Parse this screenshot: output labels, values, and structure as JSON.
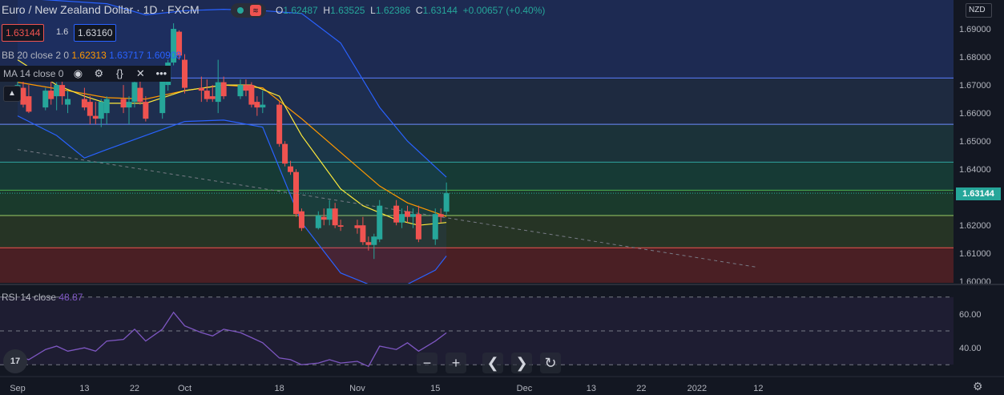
{
  "header": {
    "symbol_title": "Euro / New Zealand Dollar · 1D · FXCM",
    "ohlc": [
      {
        "k": "O",
        "v": "1.62487"
      },
      {
        "k": "H",
        "v": "1.63525"
      },
      {
        "k": "L",
        "v": "1.62386"
      },
      {
        "k": "C",
        "v": "1.63144"
      },
      {
        "k": "",
        "v": "+0.00657 (+0.40%)"
      }
    ],
    "sell_price": "1.63144",
    "spread": "1.6",
    "buy_price": "1.63160",
    "currency": "NZD"
  },
  "indicators": {
    "bb_label": "BB 20 close 2 0",
    "bb_basis": "1.62313",
    "bb_upper": "1.63717",
    "bb_lower": "1.60908",
    "ma_label": "MA 14 close 0",
    "rsi_label": "RSI 14 close",
    "rsi_value": "48.87"
  },
  "icons": [
    "eye-icon",
    "gear-icon",
    "braces-icon",
    "close-icon",
    "more-icon",
    "collapse-icon",
    "zoom-out-icon",
    "zoom-in-icon",
    "scroll-left-icon",
    "scroll-right-icon",
    "reset-icon",
    "settings-icon",
    "tradingview-logo"
  ],
  "controls": {
    "zoom_out": "−",
    "zoom_in": "+",
    "left": "❮",
    "right": "❯",
    "reset": "↻",
    "logo": "17",
    "more": "•••"
  },
  "last_price_label": "1.63144",
  "colors": {
    "background": "#131722",
    "up": "#26a69a",
    "down": "#ef5350",
    "bb_band": "#2962ff",
    "bb_basis": "#ff9800",
    "ma": "#ffeb3b",
    "rsi": "#7e57c2"
  },
  "chart_data": [
    {
      "type": "candlestick",
      "title": "Euro / New Zealand Dollar · 1D · FXCM",
      "y_ticks": [
        "1.69000",
        "1.68000",
        "1.67000",
        "1.66000",
        "1.65000",
        "1.64000",
        "1.63000",
        "1.62000",
        "1.61000",
        "1.60000"
      ],
      "ylim": [
        1.5995,
        1.7003
      ],
      "x_ticks": [
        {
          "label": "Sep",
          "date": "2021-09-01"
        },
        {
          "label": "13",
          "date": "2021-09-13"
        },
        {
          "label": "22",
          "date": "2021-09-22"
        },
        {
          "label": "Oct",
          "date": "2021-10-01"
        },
        {
          "label": "18",
          "date": "2021-10-18"
        },
        {
          "label": "Nov",
          "date": "2021-11-01"
        },
        {
          "label": "15",
          "date": "2021-11-15"
        },
        {
          "label": "Dec",
          "date": "2021-12-01"
        },
        {
          "label": "13",
          "date": "2021-12-13"
        },
        {
          "label": "22",
          "date": "2021-12-22"
        },
        {
          "label": "2022",
          "date": "2022-01-01"
        },
        {
          "label": "12",
          "date": "2022-01-12"
        }
      ],
      "candles": [
        {
          "date": "2021-09-01",
          "o": 1.6695,
          "h": 1.674,
          "l": 1.666,
          "c": 1.67
        },
        {
          "date": "2021-09-02",
          "o": 1.669,
          "h": 1.672,
          "l": 1.662,
          "c": 1.663
        },
        {
          "date": "2021-09-03",
          "o": 1.666,
          "h": 1.67,
          "l": 1.66,
          "c": 1.6605
        },
        {
          "date": "2021-09-06",
          "o": 1.662,
          "h": 1.669,
          "l": 1.661,
          "c": 1.668
        },
        {
          "date": "2021-09-07",
          "o": 1.668,
          "h": 1.672,
          "l": 1.663,
          "c": 1.665
        },
        {
          "date": "2021-09-08",
          "o": 1.666,
          "h": 1.671,
          "l": 1.661,
          "c": 1.67
        },
        {
          "date": "2021-09-09",
          "o": 1.67,
          "h": 1.672,
          "l": 1.663,
          "c": 1.666
        },
        {
          "date": "2021-09-10",
          "o": 1.663,
          "h": 1.668,
          "l": 1.66,
          "c": 1.665
        },
        {
          "date": "2021-09-13",
          "o": 1.665,
          "h": 1.669,
          "l": 1.661,
          "c": 1.662
        },
        {
          "date": "2021-09-14",
          "o": 1.664,
          "h": 1.666,
          "l": 1.656,
          "c": 1.659
        },
        {
          "date": "2021-09-15",
          "o": 1.659,
          "h": 1.664,
          "l": 1.656,
          "c": 1.658
        },
        {
          "date": "2021-09-16",
          "o": 1.658,
          "h": 1.665,
          "l": 1.655,
          "c": 1.664
        },
        {
          "date": "2021-09-17",
          "o": 1.66,
          "h": 1.666,
          "l": 1.656,
          "c": 1.665
        },
        {
          "date": "2021-09-20",
          "o": 1.665,
          "h": 1.67,
          "l": 1.66,
          "c": 1.662
        },
        {
          "date": "2021-09-21",
          "o": 1.662,
          "h": 1.666,
          "l": 1.656,
          "c": 1.664
        },
        {
          "date": "2021-09-22",
          "o": 1.664,
          "h": 1.672,
          "l": 1.662,
          "c": 1.671
        },
        {
          "date": "2021-09-23",
          "o": 1.669,
          "h": 1.672,
          "l": 1.663,
          "c": 1.664
        },
        {
          "date": "2021-09-24",
          "o": 1.664,
          "h": 1.666,
          "l": 1.657,
          "c": 1.658
        },
        {
          "date": "2021-09-27",
          "o": 1.66,
          "h": 1.674,
          "l": 1.658,
          "c": 1.672
        },
        {
          "date": "2021-09-28",
          "o": 1.67,
          "h": 1.679,
          "l": 1.668,
          "c": 1.678
        },
        {
          "date": "2021-09-29",
          "o": 1.678,
          "h": 1.692,
          "l": 1.677,
          "c": 1.69
        },
        {
          "date": "2021-09-30",
          "o": 1.689,
          "h": 1.6895,
          "l": 1.679,
          "c": 1.6805
        },
        {
          "date": "2021-10-01",
          "o": 1.679,
          "h": 1.681,
          "l": 1.667,
          "c": 1.669
        },
        {
          "date": "2021-10-04",
          "o": 1.669,
          "h": 1.673,
          "l": 1.664,
          "c": 1.668
        },
        {
          "date": "2021-10-05",
          "o": 1.668,
          "h": 1.672,
          "l": 1.664,
          "c": 1.665
        },
        {
          "date": "2021-10-06",
          "o": 1.666,
          "h": 1.67,
          "l": 1.664,
          "c": 1.665
        },
        {
          "date": "2021-10-07",
          "o": 1.664,
          "h": 1.679,
          "l": 1.66,
          "c": 1.671
        },
        {
          "date": "2021-10-08",
          "o": 1.671,
          "h": 1.673,
          "l": 1.665,
          "c": 1.666
        },
        {
          "date": "2021-10-11",
          "o": 1.666,
          "h": 1.672,
          "l": 1.665,
          "c": 1.67
        },
        {
          "date": "2021-10-12",
          "o": 1.67,
          "h": 1.672,
          "l": 1.666,
          "c": 1.668
        },
        {
          "date": "2021-10-13",
          "o": 1.67,
          "h": 1.671,
          "l": 1.662,
          "c": 1.663
        },
        {
          "date": "2021-10-14",
          "o": 1.664,
          "h": 1.666,
          "l": 1.659,
          "c": 1.662
        },
        {
          "date": "2021-10-15",
          "o": 1.662,
          "h": 1.668,
          "l": 1.66,
          "c": 1.663
        },
        {
          "date": "2021-10-18",
          "o": 1.663,
          "h": 1.664,
          "l": 1.648,
          "c": 1.649
        },
        {
          "date": "2021-10-19",
          "o": 1.649,
          "h": 1.65,
          "l": 1.641,
          "c": 1.642
        },
        {
          "date": "2021-10-20",
          "o": 1.641,
          "h": 1.643,
          "l": 1.638,
          "c": 1.639
        },
        {
          "date": "2021-10-21",
          "o": 1.639,
          "h": 1.64,
          "l": 1.623,
          "c": 1.624
        },
        {
          "date": "2021-10-22",
          "o": 1.625,
          "h": 1.626,
          "l": 1.618,
          "c": 1.619
        },
        {
          "date": "2021-10-25",
          "o": 1.619,
          "h": 1.625,
          "l": 1.6185,
          "c": 1.6235
        },
        {
          "date": "2021-10-26",
          "o": 1.623,
          "h": 1.626,
          "l": 1.62,
          "c": 1.622
        },
        {
          "date": "2021-10-27",
          "o": 1.622,
          "h": 1.629,
          "l": 1.62,
          "c": 1.626
        },
        {
          "date": "2021-10-28",
          "o": 1.626,
          "h": 1.628,
          "l": 1.619,
          "c": 1.62
        },
        {
          "date": "2021-10-29",
          "o": 1.62,
          "h": 1.622,
          "l": 1.618,
          "c": 1.6195
        },
        {
          "date": "2021-11-01",
          "o": 1.62,
          "h": 1.622,
          "l": 1.617,
          "c": 1.619
        },
        {
          "date": "2021-11-02",
          "o": 1.62,
          "h": 1.623,
          "l": 1.613,
          "c": 1.614
        },
        {
          "date": "2021-11-03",
          "o": 1.614,
          "h": 1.616,
          "l": 1.611,
          "c": 1.613
        },
        {
          "date": "2021-11-04",
          "o": 1.613,
          "h": 1.617,
          "l": 1.608,
          "c": 1.616
        },
        {
          "date": "2021-11-05",
          "o": 1.615,
          "h": 1.629,
          "l": 1.614,
          "c": 1.627
        },
        {
          "date": "2021-11-08",
          "o": 1.627,
          "h": 1.629,
          "l": 1.62,
          "c": 1.621
        },
        {
          "date": "2021-11-09",
          "o": 1.621,
          "h": 1.626,
          "l": 1.619,
          "c": 1.624
        },
        {
          "date": "2021-11-10",
          "o": 1.625,
          "h": 1.627,
          "l": 1.621,
          "c": 1.623
        },
        {
          "date": "2021-11-11",
          "o": 1.623,
          "h": 1.626,
          "l": 1.619,
          "c": 1.624
        },
        {
          "date": "2021-11-12",
          "o": 1.624,
          "h": 1.627,
          "l": 1.614,
          "c": 1.615
        },
        {
          "date": "2021-11-15",
          "o": 1.615,
          "h": 1.626,
          "l": 1.613,
          "c": 1.624
        },
        {
          "date": "2021-11-16",
          "o": 1.624,
          "h": 1.626,
          "l": 1.621,
          "c": 1.623
        },
        {
          "date": "2021-11-17",
          "o": 1.62487,
          "h": 1.63525,
          "l": 1.62386,
          "c": 1.63144
        }
      ],
      "bb_upper": [
        {
          "date": "2021-09-01",
          "v": 1.701
        },
        {
          "date": "2021-09-17",
          "v": 1.699
        },
        {
          "date": "2021-09-24",
          "v": 1.695
        },
        {
          "date": "2021-10-01",
          "v": 1.6965
        },
        {
          "date": "2021-10-08",
          "v": 1.697
        },
        {
          "date": "2021-10-15",
          "v": 1.6965
        },
        {
          "date": "2021-10-22",
          "v": 1.6955
        },
        {
          "date": "2021-10-29",
          "v": 1.685
        },
        {
          "date": "2021-11-05",
          "v": 1.662
        },
        {
          "date": "2021-11-10",
          "v": 1.65
        },
        {
          "date": "2021-11-17",
          "v": 1.63717
        }
      ],
      "bb_basis": [
        {
          "date": "2021-09-01",
          "v": 1.671
        },
        {
          "date": "2021-09-10",
          "v": 1.668
        },
        {
          "date": "2021-09-17",
          "v": 1.6655
        },
        {
          "date": "2021-09-24",
          "v": 1.665
        },
        {
          "date": "2021-10-01",
          "v": 1.668
        },
        {
          "date": "2021-10-08",
          "v": 1.67
        },
        {
          "date": "2021-10-15",
          "v": 1.669
        },
        {
          "date": "2021-10-22",
          "v": 1.658
        },
        {
          "date": "2021-10-29",
          "v": 1.646
        },
        {
          "date": "2021-11-05",
          "v": 1.634
        },
        {
          "date": "2021-11-10",
          "v": 1.628
        },
        {
          "date": "2021-11-17",
          "v": 1.62313
        }
      ],
      "bb_lower": [
        {
          "date": "2021-09-01",
          "v": 1.659
        },
        {
          "date": "2021-09-08",
          "v": 1.652
        },
        {
          "date": "2021-09-13",
          "v": 1.644
        },
        {
          "date": "2021-09-17",
          "v": 1.647
        },
        {
          "date": "2021-09-24",
          "v": 1.652
        },
        {
          "date": "2021-10-01",
          "v": 1.657
        },
        {
          "date": "2021-10-08",
          "v": 1.6575
        },
        {
          "date": "2021-10-15",
          "v": 1.655
        },
        {
          "date": "2021-10-22",
          "v": 1.621
        },
        {
          "date": "2021-10-29",
          "v": 1.603
        },
        {
          "date": "2021-11-03",
          "v": 1.599
        },
        {
          "date": "2021-11-10",
          "v": 1.599
        },
        {
          "date": "2021-11-15",
          "v": 1.604
        },
        {
          "date": "2021-11-17",
          "v": 1.60908
        }
      ],
      "ma": [
        {
          "date": "2021-09-01",
          "v": 1.679
        },
        {
          "date": "2021-09-08",
          "v": 1.67
        },
        {
          "date": "2021-09-13",
          "v": 1.666
        },
        {
          "date": "2021-09-17",
          "v": 1.6635
        },
        {
          "date": "2021-09-24",
          "v": 1.6635
        },
        {
          "date": "2021-10-01",
          "v": 1.668
        },
        {
          "date": "2021-10-08",
          "v": 1.67
        },
        {
          "date": "2021-10-13",
          "v": 1.67
        },
        {
          "date": "2021-10-18",
          "v": 1.666
        },
        {
          "date": "2021-10-22",
          "v": 1.652
        },
        {
          "date": "2021-10-29",
          "v": 1.633
        },
        {
          "date": "2021-11-02",
          "v": 1.627
        },
        {
          "date": "2021-11-08",
          "v": 1.622
        },
        {
          "date": "2021-11-12",
          "v": 1.62
        },
        {
          "date": "2021-11-17",
          "v": 1.621
        }
      ],
      "horizontal_levels": [
        1.6725,
        1.656,
        1.6425,
        1.6325,
        1.6235,
        1.612
      ],
      "trend_line": [
        {
          "date": "2021-09-01",
          "v": 1.647
        },
        {
          "date": "2022-01-12",
          "v": 1.605
        }
      ],
      "last_price": 1.63144
    },
    {
      "type": "line",
      "title": "RSI 14 close",
      "y_ticks": [
        "60.00",
        "40.00"
      ],
      "ylim": [
        23,
        77
      ],
      "levels": [
        70,
        50,
        30
      ],
      "points": [
        {
          "date": "2021-09-01",
          "v": 35
        },
        {
          "date": "2021-09-03",
          "v": 33
        },
        {
          "date": "2021-09-06",
          "v": 39
        },
        {
          "date": "2021-09-08",
          "v": 41
        },
        {
          "date": "2021-09-10",
          "v": 38
        },
        {
          "date": "2021-09-13",
          "v": 40
        },
        {
          "date": "2021-09-15",
          "v": 38
        },
        {
          "date": "2021-09-17",
          "v": 44
        },
        {
          "date": "2021-09-20",
          "v": 45
        },
        {
          "date": "2021-09-22",
          "v": 51
        },
        {
          "date": "2021-09-24",
          "v": 44
        },
        {
          "date": "2021-09-27",
          "v": 51
        },
        {
          "date": "2021-09-29",
          "v": 61
        },
        {
          "date": "2021-10-01",
          "v": 53
        },
        {
          "date": "2021-10-04",
          "v": 49
        },
        {
          "date": "2021-10-06",
          "v": 47
        },
        {
          "date": "2021-10-08",
          "v": 51
        },
        {
          "date": "2021-10-11",
          "v": 49
        },
        {
          "date": "2021-10-13",
          "v": 46
        },
        {
          "date": "2021-10-15",
          "v": 43
        },
        {
          "date": "2021-10-18",
          "v": 34
        },
        {
          "date": "2021-10-20",
          "v": 33
        },
        {
          "date": "2021-10-22",
          "v": 30
        },
        {
          "date": "2021-10-25",
          "v": 31
        },
        {
          "date": "2021-10-27",
          "v": 33
        },
        {
          "date": "2021-10-29",
          "v": 31
        },
        {
          "date": "2021-11-01",
          "v": 32
        },
        {
          "date": "2021-11-03",
          "v": 29
        },
        {
          "date": "2021-11-05",
          "v": 41
        },
        {
          "date": "2021-11-08",
          "v": 39
        },
        {
          "date": "2021-11-10",
          "v": 43
        },
        {
          "date": "2021-11-12",
          "v": 38
        },
        {
          "date": "2021-11-15",
          "v": 44
        },
        {
          "date": "2021-11-17",
          "v": 48.87
        }
      ],
      "last_value": 48.87
    }
  ]
}
